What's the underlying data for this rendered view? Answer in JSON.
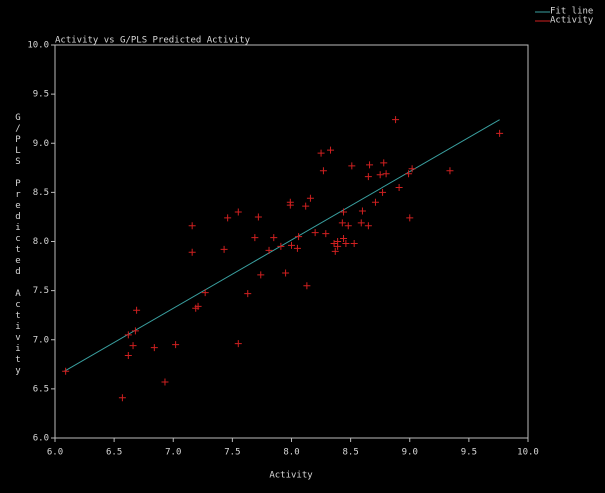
{
  "chart_data": {
    "type": "scatter",
    "title": "Activity vs G/PLS Predicted Activity",
    "x_label": "Activity",
    "y_label": "G/PLS Predicted Activity",
    "xlim": [
      6,
      10
    ],
    "ylim": [
      6,
      10
    ],
    "xticks": [
      {
        "value": 6,
        "label": "6.0"
      },
      {
        "value": 6.5,
        "label": "6.5"
      },
      {
        "value": 7,
        "label": "7.0"
      },
      {
        "value": 7.5,
        "label": "7.5"
      },
      {
        "value": 8,
        "label": "8.0"
      },
      {
        "value": 8.5,
        "label": "8.5"
      },
      {
        "value": 9,
        "label": "9.0"
      },
      {
        "value": 9.5,
        "label": "9.5"
      },
      {
        "value": 10,
        "label": "10.0"
      }
    ],
    "yticks": [
      {
        "value": 6,
        "label": "6.0"
      },
      {
        "value": 6.5,
        "label": "6.5"
      },
      {
        "value": 7,
        "label": "7.0"
      },
      {
        "value": 7.5,
        "label": "7.5"
      },
      {
        "value": 8,
        "label": "8.0"
      },
      {
        "value": 8.5,
        "label": "8.5"
      },
      {
        "value": 9,
        "label": "9.0"
      },
      {
        "value": 9.5,
        "label": "9.5"
      },
      {
        "value": 10,
        "label": "10.0"
      }
    ],
    "grid": false,
    "legend": "top-right",
    "series": [
      {
        "name": "Fit line",
        "color": "#3aa0a0",
        "mode": "line",
        "x": [
          6.08,
          9.76
        ],
        "values": [
          6.68,
          9.24
        ]
      },
      {
        "name": "Activity",
        "color": "#d02020",
        "mode": "markers",
        "x": [
          6.09,
          6.57,
          6.62,
          6.62,
          6.66,
          6.68,
          6.69,
          6.84,
          6.93,
          7.02,
          7.16,
          7.16,
          7.19,
          7.21,
          7.27,
          7.43,
          7.46,
          7.55,
          7.55,
          7.63,
          7.69,
          7.72,
          7.74,
          7.81,
          7.85,
          7.91,
          7.95,
          7.99,
          7.99,
          8.0,
          8.05,
          8.06,
          8.12,
          8.13,
          8.16,
          8.2,
          8.25,
          8.27,
          8.29,
          8.33,
          8.36,
          8.37,
          8.39,
          8.39,
          8.43,
          8.44,
          8.44,
          8.46,
          8.48,
          8.51,
          8.53,
          8.59,
          8.6,
          8.65,
          8.66,
          8.65,
          8.71,
          8.75,
          8.77,
          8.78,
          8.8,
          8.88,
          8.91,
          8.99,
          9.0,
          9.02,
          9.34,
          9.76
        ],
        "values": [
          6.68,
          6.41,
          6.84,
          7.05,
          6.94,
          7.09,
          7.3,
          6.92,
          6.57,
          6.95,
          8.16,
          7.89,
          7.32,
          7.34,
          7.48,
          7.92,
          8.24,
          8.3,
          6.96,
          7.47,
          8.04,
          8.25,
          7.66,
          7.91,
          8.04,
          7.95,
          7.68,
          8.37,
          8.4,
          7.96,
          7.93,
          8.05,
          8.36,
          7.55,
          8.44,
          8.09,
          8.9,
          8.72,
          8.08,
          8.93,
          7.98,
          7.9,
          7.95,
          8.0,
          8.19,
          8.3,
          8.03,
          7.98,
          8.16,
          8.77,
          7.98,
          8.19,
          8.31,
          8.16,
          8.78,
          8.66,
          8.4,
          8.68,
          8.5,
          8.8,
          8.69,
          9.24,
          8.55,
          8.69,
          8.24,
          8.74,
          8.72,
          9.1
        ]
      }
    ]
  }
}
